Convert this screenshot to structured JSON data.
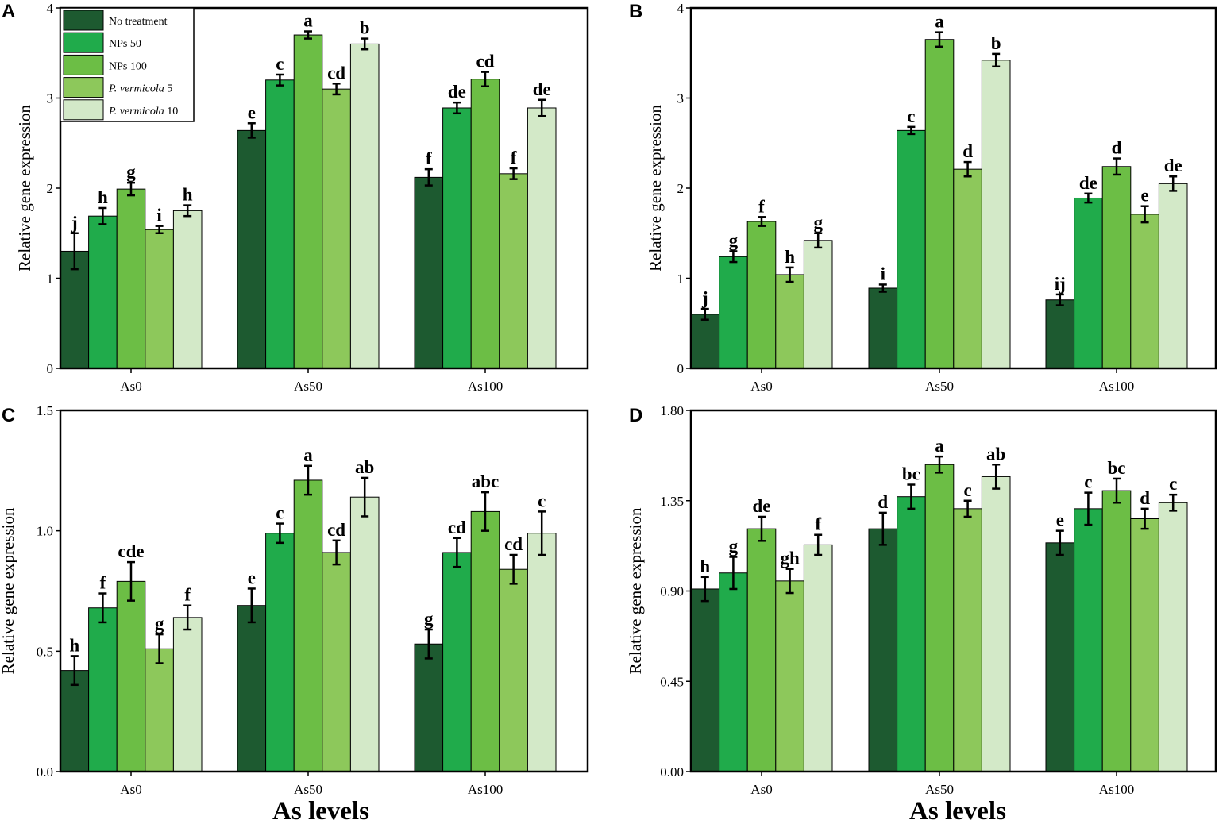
{
  "legend": {
    "items": [
      {
        "name": "No treatment",
        "prefix": "",
        "italic": "",
        "suffix": "No treatment",
        "color": "#1d5a30"
      },
      {
        "name": "NPs 50",
        "prefix": "",
        "italic": "",
        "suffix": "NPs 50",
        "color": "#20ab4b"
      },
      {
        "name": "NPs 100",
        "prefix": "",
        "italic": "",
        "suffix": "NPs 100",
        "color": "#6cbe45"
      },
      {
        "name": "P. vermicola 5",
        "prefix": "",
        "italic": "P. vermicola",
        "suffix": " 5",
        "color": "#8dc85b"
      },
      {
        "name": "P. vermicola 10",
        "prefix": "",
        "italic": "P. vermicola",
        "suffix": " 10",
        "color": "#d3e9c8"
      }
    ]
  },
  "colors": {
    "series": [
      "#1d5a30",
      "#20ab4b",
      "#6cbe45",
      "#8dc85b",
      "#d3e9c8"
    ],
    "axis": "#000000"
  },
  "chart_data": [
    {
      "panel": "A",
      "type": "bar",
      "categories": [
        "As0",
        "As50",
        "As100"
      ],
      "xlabel": "",
      "ylabel": "Relative gene expression",
      "ylim": [
        0,
        4
      ],
      "yticks": [
        0,
        1,
        2,
        3,
        4
      ],
      "ytick_labels": [
        "0",
        "1",
        "2",
        "3",
        "4"
      ],
      "series": [
        {
          "name": "No treatment",
          "values": [
            1.3,
            2.64,
            2.12
          ],
          "errors": [
            0.2,
            0.08,
            0.09
          ],
          "labels": [
            "j",
            "e",
            "f"
          ]
        },
        {
          "name": "NPs 50",
          "values": [
            1.69,
            3.2,
            2.89
          ],
          "errors": [
            0.09,
            0.06,
            0.06
          ],
          "labels": [
            "h",
            "c",
            "de"
          ]
        },
        {
          "name": "NPs 100",
          "values": [
            1.99,
            3.7,
            3.21
          ],
          "errors": [
            0.07,
            0.04,
            0.08
          ],
          "labels": [
            "g",
            "a",
            "cd"
          ]
        },
        {
          "name": "P. vermicola 5",
          "values": [
            1.54,
            3.1,
            2.16
          ],
          "errors": [
            0.04,
            0.06,
            0.06
          ],
          "labels": [
            "i",
            "cd",
            "f"
          ]
        },
        {
          "name": "P. vermicola 10",
          "values": [
            1.75,
            3.6,
            2.89
          ],
          "errors": [
            0.06,
            0.06,
            0.09
          ],
          "labels": [
            "h",
            "b",
            "de"
          ]
        }
      ]
    },
    {
      "panel": "B",
      "type": "bar",
      "categories": [
        "As0",
        "As50",
        "As100"
      ],
      "xlabel": "",
      "ylabel": "Relative gene expression",
      "ylim": [
        0,
        4
      ],
      "yticks": [
        0,
        1,
        2,
        3,
        4
      ],
      "ytick_labels": [
        "0",
        "1",
        "2",
        "3",
        "4"
      ],
      "series": [
        {
          "name": "No treatment",
          "values": [
            0.6,
            0.89,
            0.76
          ],
          "errors": [
            0.06,
            0.04,
            0.06
          ],
          "labels": [
            "j",
            "i",
            "ij"
          ]
        },
        {
          "name": "NPs 50",
          "values": [
            1.24,
            2.64,
            1.89
          ],
          "errors": [
            0.06,
            0.04,
            0.05
          ],
          "labels": [
            "g",
            "c",
            "de"
          ]
        },
        {
          "name": "NPs 100",
          "values": [
            1.63,
            3.65,
            2.24
          ],
          "errors": [
            0.05,
            0.08,
            0.09
          ],
          "labels": [
            "f",
            "a",
            "d"
          ]
        },
        {
          "name": "P. vermicola 5",
          "values": [
            1.04,
            2.21,
            1.71
          ],
          "errors": [
            0.08,
            0.08,
            0.09
          ],
          "labels": [
            "h",
            "d",
            "e"
          ]
        },
        {
          "name": "P. vermicola 10",
          "values": [
            1.42,
            3.42,
            2.05
          ],
          "errors": [
            0.08,
            0.07,
            0.08
          ],
          "labels": [
            "g",
            "b",
            "de"
          ]
        }
      ]
    },
    {
      "panel": "C",
      "type": "bar",
      "categories": [
        "As0",
        "As50",
        "As100"
      ],
      "xlabel": "As levels",
      "ylabel": "Relative gene expression",
      "ylim": [
        0,
        1.5
      ],
      "yticks": [
        0,
        0.5,
        1.0,
        1.5
      ],
      "ytick_labels": [
        "0.0",
        "0.5",
        "1.0",
        "1.5"
      ],
      "series": [
        {
          "name": "No treatment",
          "values": [
            0.42,
            0.69,
            0.53
          ],
          "errors": [
            0.06,
            0.07,
            0.06
          ],
          "labels": [
            "h",
            "e",
            "g"
          ]
        },
        {
          "name": "NPs 50",
          "values": [
            0.68,
            0.99,
            0.91
          ],
          "errors": [
            0.06,
            0.04,
            0.06
          ],
          "labels": [
            "f",
            "c",
            "cd"
          ]
        },
        {
          "name": "NPs 100",
          "values": [
            0.79,
            1.21,
            1.08
          ],
          "errors": [
            0.08,
            0.06,
            0.08
          ],
          "labels": [
            "cde",
            "a",
            "abc"
          ]
        },
        {
          "name": "P. vermicola 5",
          "values": [
            0.51,
            0.91,
            0.84
          ],
          "errors": [
            0.06,
            0.05,
            0.06
          ],
          "labels": [
            "g",
            "cd",
            "cd"
          ]
        },
        {
          "name": "P. vermicola 10",
          "values": [
            0.64,
            1.14,
            0.99
          ],
          "errors": [
            0.05,
            0.08,
            0.09
          ],
          "labels": [
            "f",
            "ab",
            "c"
          ]
        }
      ]
    },
    {
      "panel": "D",
      "type": "bar",
      "categories": [
        "As0",
        "As50",
        "As100"
      ],
      "xlabel": "As levels",
      "ylabel": "Relative gene expression",
      "ylim": [
        0,
        1.8
      ],
      "yticks": [
        0,
        0.45,
        0.9,
        1.35,
        1.8
      ],
      "ytick_labels": [
        "0.00",
        "0.45",
        "0.90",
        "1.35",
        "1.80"
      ],
      "series": [
        {
          "name": "No treatment",
          "values": [
            0.91,
            1.21,
            1.14
          ],
          "errors": [
            0.06,
            0.08,
            0.06
          ],
          "labels": [
            "h",
            "d",
            "e"
          ]
        },
        {
          "name": "NPs 50",
          "values": [
            0.99,
            1.37,
            1.31
          ],
          "errors": [
            0.08,
            0.06,
            0.08
          ],
          "labels": [
            "g",
            "bc",
            "c"
          ]
        },
        {
          "name": "NPs 100",
          "values": [
            1.21,
            1.53,
            1.4
          ],
          "errors": [
            0.06,
            0.04,
            0.06
          ],
          "labels": [
            "de",
            "a",
            "bc"
          ]
        },
        {
          "name": "P. vermicola 5",
          "values": [
            0.95,
            1.31,
            1.26
          ],
          "errors": [
            0.06,
            0.04,
            0.05
          ],
          "labels": [
            "gh",
            "c",
            "d"
          ]
        },
        {
          "name": "P. vermicola 10",
          "values": [
            1.13,
            1.47,
            1.34
          ],
          "errors": [
            0.05,
            0.06,
            0.04
          ],
          "labels": [
            "f",
            "ab",
            "c"
          ]
        }
      ]
    }
  ]
}
